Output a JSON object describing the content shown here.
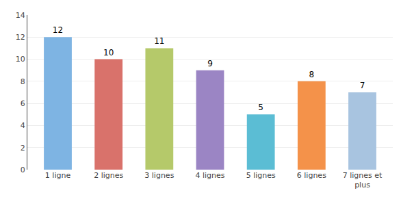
{
  "chart_data": {
    "type": "bar",
    "categories": [
      "1 ligne",
      "2 lignes",
      "3 lignes",
      "4 lignes",
      "5 lignes",
      "6 lignes",
      "7 lignes et\nplus"
    ],
    "values": [
      12,
      10,
      11,
      9,
      5,
      8,
      7
    ],
    "colors": [
      "#7EB4E3",
      "#D9726B",
      "#B5C96A",
      "#9B85C4",
      "#5BBDD4",
      "#F4924A",
      "#A8C4E0"
    ],
    "ylim": [
      0,
      14
    ],
    "yticks": [
      0,
      2,
      4,
      6,
      8,
      10,
      12,
      14
    ],
    "grid": true,
    "data_labels": true
  }
}
